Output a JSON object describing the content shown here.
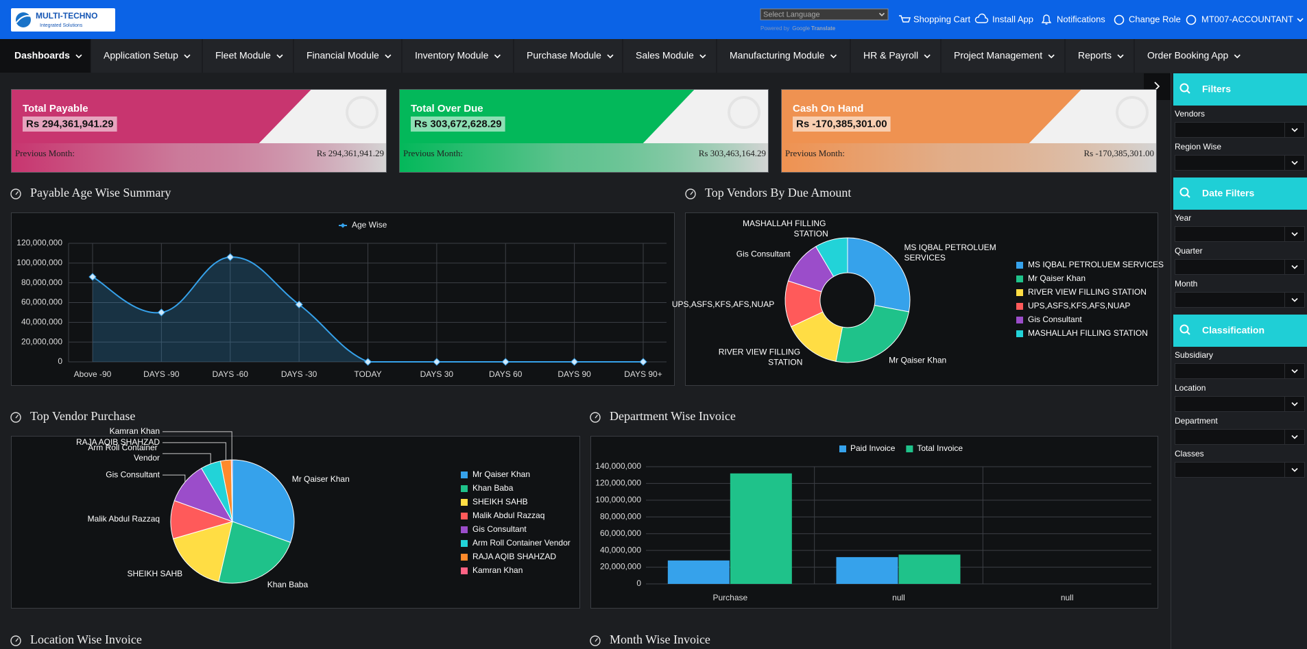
{
  "header": {
    "logo_title": "MULTI-TECHNO",
    "logo_subtitle": "Integrated Solutions",
    "language_select": "Select Language",
    "powered_by": "Powered by",
    "translate_brand": "Google",
    "translate_text": "Translate",
    "links": [
      "Shopping Cart",
      "Install App",
      "Notifications",
      "Change Role",
      "MT007-ACCOUNTANT"
    ]
  },
  "nav": {
    "items": [
      "Dashboards",
      "Application Setup",
      "Fleet Module",
      "Financial Module",
      "Inventory Module",
      "Purchase Module",
      "Sales Module",
      "Manufacturing Module",
      "HR & Payroll",
      "Project Management",
      "Reports",
      "Order Booking App"
    ]
  },
  "cards": [
    {
      "title": "Total Payable",
      "amount": "Rs 294,361,941.29",
      "previous_label": "Previous Month:",
      "previous_amount": "Rs 294,361,941.29",
      "color": "#c8356f"
    },
    {
      "title": "Total Over Due",
      "amount": "Rs 303,672,628.29",
      "previous_label": "Previous Month:",
      "previous_amount": "Rs 303,463,164.29",
      "color": "#03b85a"
    },
    {
      "title": "Cash On Hand",
      "amount": "Rs -170,385,301.00",
      "previous_label": "Previous Month:",
      "previous_amount": "Rs -170,385,301.00",
      "color": "#ef9251"
    }
  ],
  "chart_data": [
    {
      "type": "line",
      "title": "Payable Age Wise Summary",
      "categories": [
        "Above -90",
        "DAYS -90",
        "DAYS -60",
        "DAYS -30",
        "TODAY",
        "DAYS 30",
        "DAYS 60",
        "DAYS 90",
        "DAYS 90+"
      ],
      "series": [
        {
          "name": "Age Wise",
          "color": "#36a2eb",
          "values": [
            86000000,
            50000000,
            106000000,
            58000000,
            0,
            0,
            0,
            0,
            0
          ]
        }
      ],
      "ylim": [
        0,
        120000000
      ],
      "yticks": [
        0,
        {
          "value": 20000000,
          "label": "20,000,000"
        },
        {
          "value": 40000000,
          "label": "40,000,000"
        },
        {
          "value": 60000000,
          "label": "60,000,000"
        },
        {
          "value": 80000000,
          "label": "80,000,000"
        },
        {
          "value": 100000000,
          "label": "100,000,000"
        },
        {
          "value": 120000000,
          "label": "120,000,000"
        }
      ],
      "grid": true,
      "fill": true,
      "legend": "top"
    },
    {
      "type": "doughnut",
      "title": "Top Vendors By Due Amount",
      "categories": [
        "MS IQBAL PETROLUEM SERVICES",
        "Mr Qaiser Khan",
        "RIVER VIEW FILLING STATION",
        "UPS,ASFS,KFS,AFS,NUAP",
        "Gis Consultant",
        "MASHALLAH FILLING STATION"
      ],
      "values": [
        28,
        25,
        15,
        12,
        11.5,
        8.5
      ],
      "colors": [
        "#36a2eb",
        "#1fc28a",
        "#ffdd44",
        "#ff5a5a",
        "#9b4dca",
        "#22d3d8"
      ],
      "legend": "right"
    },
    {
      "type": "pie",
      "title": "Top Vendor Purchase",
      "categories": [
        "Mr Qaiser Khan",
        "Khan Baba",
        "SHEIKH SAHB",
        "Malik Abdul Razzaq",
        "Gis Consultant",
        "Arm Roll Container Vendor",
        "RAJA AQIB SHAHZAD",
        "Kamran Khan"
      ],
      "values": [
        30.5,
        23.1,
        16.9,
        10,
        11.1,
        5.3,
        2.8,
        0.3
      ],
      "colors": [
        "#36a2eb",
        "#1fc28a",
        "#ffdd44",
        "#ff5a5a",
        "#9b4dca",
        "#22d3d8",
        "#ff8a2b",
        "#ff6384"
      ],
      "legend": "right"
    },
    {
      "type": "bar",
      "title": "Department Wise Invoice",
      "categories": [
        "Purchase",
        "null",
        "null"
      ],
      "series": [
        {
          "name": "Paid Invoice",
          "color": "#36a2eb",
          "values": [
            28000000,
            32000000,
            0
          ]
        },
        {
          "name": "Total Invoice",
          "color": "#1fc28a",
          "values": [
            132000000,
            35000000,
            0
          ]
        }
      ],
      "ylim": [
        0,
        140000000
      ],
      "yticks": [
        0,
        {
          "value": 20000000,
          "label": "20,000,000"
        },
        {
          "value": 40000000,
          "label": "40,000,000"
        },
        {
          "value": 60000000,
          "label": "60,000,000"
        },
        {
          "value": 80000000,
          "label": "80,000,000"
        },
        {
          "value": 100000000,
          "label": "100,000,000"
        },
        {
          "value": 120000000,
          "label": "120,000,000"
        },
        {
          "value": 140000000,
          "label": "140,000,000"
        }
      ],
      "grid": true,
      "legend": "top"
    }
  ],
  "more_sections": [
    "Location Wise Invoice",
    "Month Wise Invoice"
  ],
  "sidebar": {
    "groups": [
      {
        "title": "Filters",
        "fields": [
          "Vendors",
          "Region Wise"
        ]
      },
      {
        "title": "Date Filters",
        "fields": [
          "Year",
          "Quarter",
          "Month"
        ]
      },
      {
        "title": "Classification",
        "fields": [
          "Subsidiary",
          "Location",
          "Department",
          "Classes"
        ]
      }
    ]
  }
}
